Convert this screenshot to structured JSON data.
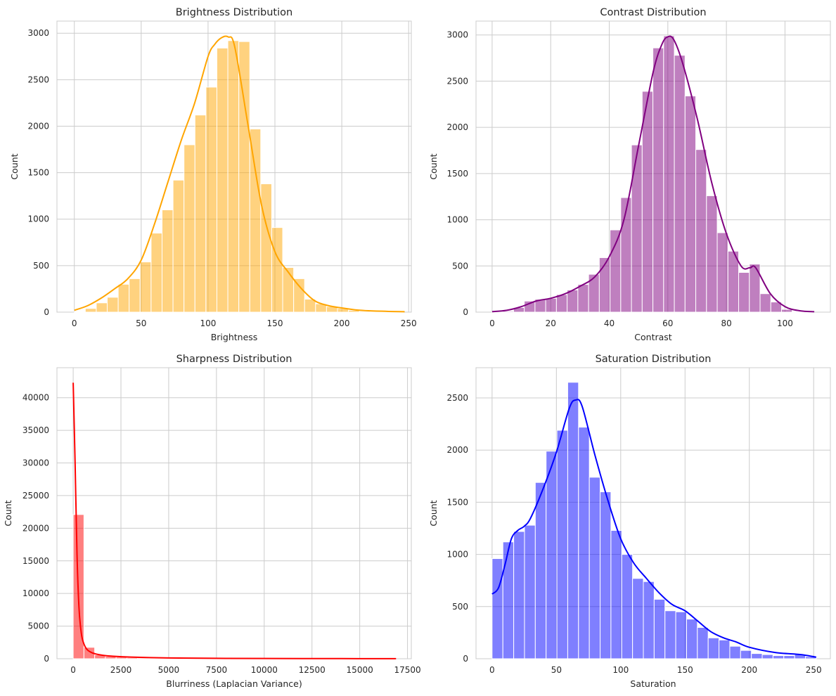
{
  "chart_data": [
    {
      "type": "histogram",
      "title": "Brightness Distribution",
      "xlabel": "Brightness",
      "ylabel": "Count",
      "xlim": [
        -13,
        252
      ],
      "ylim": [
        0,
        3130
      ],
      "xticks": [
        0,
        50,
        100,
        150,
        200,
        250
      ],
      "yticks": [
        0,
        500,
        1000,
        1500,
        2000,
        2500,
        3000
      ],
      "grid": true,
      "color": "#ffa500",
      "bin_start": 0,
      "bin_width": 8.2,
      "counts": [
        5,
        40,
        100,
        160,
        300,
        360,
        540,
        850,
        1100,
        1420,
        1800,
        2120,
        2420,
        2840,
        2920,
        2910,
        1970,
        1380,
        910,
        480,
        360,
        140,
        90,
        60,
        40,
        20,
        10,
        8,
        5,
        3
      ],
      "kde": {
        "x": [
          0,
          10,
          20,
          30,
          40,
          50,
          60,
          70,
          80,
          90,
          100,
          105,
          110,
          115,
          120,
          130,
          140,
          150,
          160,
          170,
          180,
          190,
          200,
          210,
          220,
          235,
          247
        ],
        "y": [
          20,
          70,
          150,
          250,
          360,
          560,
          950,
          1400,
          1850,
          2250,
          2750,
          2880,
          2950,
          2960,
          2850,
          2000,
          1150,
          650,
          430,
          250,
          120,
          70,
          45,
          25,
          15,
          8,
          5
        ]
      }
    },
    {
      "type": "histogram",
      "title": "Contrast Distribution",
      "xlabel": "Contrast",
      "ylabel": "Count",
      "xlim": [
        -5.5,
        115.5
      ],
      "ylim": [
        0,
        3150
      ],
      "xticks": [
        0,
        20,
        40,
        60,
        80,
        100
      ],
      "yticks": [
        0,
        500,
        1000,
        1500,
        2000,
        2500,
        3000
      ],
      "grid": true,
      "color": "#800080",
      "bin_start": 0,
      "bin_width": 3.66,
      "counts": [
        5,
        10,
        50,
        120,
        140,
        150,
        190,
        240,
        300,
        410,
        590,
        890,
        1240,
        1810,
        2390,
        2860,
        2990,
        2780,
        2340,
        1760,
        1260,
        860,
        660,
        430,
        520,
        200,
        110,
        30,
        8,
        5
      ],
      "kde": {
        "x": [
          0,
          5,
          10,
          15,
          20,
          25,
          30,
          35,
          40,
          45,
          50,
          55,
          58,
          60,
          62,
          65,
          70,
          75,
          80,
          85,
          88,
          90,
          95,
          100,
          105,
          110
        ],
        "y": [
          5,
          20,
          60,
          120,
          150,
          200,
          280,
          380,
          600,
          1000,
          1800,
          2600,
          2900,
          2980,
          2950,
          2700,
          2100,
          1400,
          850,
          500,
          480,
          480,
          200,
          60,
          15,
          5
        ]
      }
    },
    {
      "type": "histogram",
      "title": "Sharpness Distribution",
      "xlabel": "Blurriness (Laplacian Variance)",
      "ylabel": "Count",
      "xlim": [
        -850,
        17700
      ],
      "ylim": [
        0,
        44600
      ],
      "xticks": [
        0,
        2500,
        5000,
        7500,
        10000,
        12500,
        15000,
        17500
      ],
      "xtick_labels": [
        "0",
        "2500",
        "5000",
        "7500",
        "10000",
        "12500",
        "15000",
        "17500"
      ],
      "yticks": [
        0,
        5000,
        10000,
        15000,
        20000,
        25000,
        30000,
        35000,
        40000
      ],
      "grid": true,
      "color": "#ff0000",
      "bin_start": 0,
      "bin_width": 562,
      "counts": [
        22100,
        1750,
        600,
        350,
        250,
        180,
        130,
        100,
        80,
        60,
        50,
        40,
        30,
        25,
        20,
        15,
        12,
        10,
        8,
        6,
        5,
        4,
        3,
        3,
        2,
        2,
        1,
        1,
        1,
        1
      ],
      "kde": {
        "x": [
          0,
          100,
          200,
          300,
          400,
          500,
          700,
          1000,
          1500,
          2000,
          3000,
          5000,
          8000,
          12000,
          16900
        ],
        "y": [
          42300,
          30000,
          16000,
          8000,
          4500,
          2800,
          1500,
          900,
          550,
          400,
          250,
          120,
          60,
          30,
          10
        ]
      }
    },
    {
      "type": "histogram",
      "title": "Saturation Distribution",
      "xlabel": "Saturation",
      "ylabel": "Count",
      "xlim": [
        -12.5,
        263
      ],
      "ylim": [
        0,
        2790
      ],
      "xticks": [
        0,
        50,
        100,
        150,
        200,
        250
      ],
      "yticks": [
        0,
        500,
        1000,
        1500,
        2000,
        2500
      ],
      "grid": true,
      "color": "#0000ff",
      "bin_start": 0,
      "bin_width": 8.4,
      "counts": [
        960,
        1120,
        1220,
        1280,
        1690,
        1990,
        2190,
        2650,
        2220,
        1740,
        1600,
        1230,
        1000,
        770,
        740,
        570,
        460,
        450,
        380,
        300,
        200,
        180,
        120,
        80,
        50,
        40,
        30,
        30,
        40,
        20
      ],
      "kde": {
        "x": [
          0,
          5,
          10,
          15,
          20,
          25,
          30,
          40,
          50,
          60,
          65,
          70,
          80,
          90,
          100,
          110,
          120,
          130,
          140,
          150,
          160,
          170,
          180,
          190,
          200,
          220,
          240,
          252
        ],
        "y": [
          620,
          680,
          900,
          1150,
          1230,
          1270,
          1350,
          1640,
          1980,
          2400,
          2480,
          2420,
          1950,
          1520,
          1150,
          920,
          770,
          630,
          520,
          460,
          360,
          260,
          200,
          160,
          110,
          60,
          40,
          15
        ]
      }
    }
  ]
}
